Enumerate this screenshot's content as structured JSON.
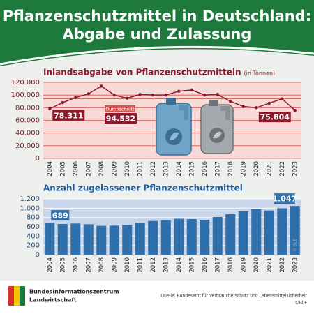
{
  "header": {
    "title_line1": "Pflanzenschutzmittel in Deutschland:",
    "title_line2": "Abgabe und Zulassung"
  },
  "chart_data": [
    {
      "type": "line",
      "title": "Inlandsabgabe von Pflanzenschutzmitteln",
      "unit": "(in Tonnen)",
      "categories": [
        "2004",
        "2005",
        "2006",
        "2007",
        "2008",
        "2009",
        "2010",
        "2011",
        "2012",
        "2013",
        "2014",
        "2015",
        "2016",
        "2017",
        "2018",
        "2019",
        "2020",
        "2021",
        "2022",
        "2023"
      ],
      "values": [
        78311,
        88000,
        96000,
        102000,
        114000,
        100000,
        95000,
        101000,
        100000,
        100000,
        106000,
        108000,
        100000,
        101000,
        90000,
        82000,
        80000,
        87000,
        94000,
        75804
      ],
      "value_labels": [
        "78.311",
        null,
        null,
        null,
        null,
        null,
        null,
        null,
        null,
        null,
        null,
        null,
        null,
        null,
        null,
        null,
        null,
        null,
        null,
        "75.804"
      ],
      "color": "#8b1a2e",
      "ylim": [
        0,
        120000
      ],
      "yticks": [
        0,
        {
          "value": 20000,
          "label": "20.000"
        },
        {
          "value": 40000,
          "label": "40.000"
        },
        {
          "value": 60000,
          "label": "60.000"
        },
        {
          "value": 80000,
          "label": "80.000"
        },
        {
          "value": 100000,
          "label": "100.000"
        },
        {
          "value": 120000,
          "label": "120.000"
        }
      ],
      "grid": true,
      "average": {
        "label": "Durchschnitt",
        "value": 94532,
        "value_label": "94.532"
      }
    },
    {
      "type": "bar",
      "title": "Anzahl zugelassener Pflanzenschutzmittel",
      "categories": [
        "2004",
        "2005",
        "2006",
        "2007",
        "2008",
        "2009",
        "2010",
        "2011",
        "2012",
        "2013",
        "2014",
        "2015",
        "2016",
        "2017",
        "2018",
        "2019",
        "2020",
        "2021",
        "2022",
        "2023"
      ],
      "values": [
        689,
        660,
        670,
        655,
        620,
        625,
        640,
        690,
        725,
        740,
        770,
        765,
        750,
        810,
        870,
        935,
        980,
        950,
        1000,
        1047
      ],
      "value_labels": [
        "689",
        null,
        null,
        null,
        null,
        null,
        null,
        null,
        null,
        null,
        null,
        null,
        null,
        null,
        null,
        null,
        null,
        null,
        null,
        "1.047"
      ],
      "color": "#2e6fac",
      "ylim": [
        0,
        1200
      ],
      "yticks": [
        0,
        200,
        400,
        600,
        800,
        {
          "value": 1000,
          "label": "1.000"
        },
        {
          "value": 1200,
          "label": "1.200"
        }
      ],
      "grid": true,
      "watermark": "© BLE"
    }
  ],
  "footer": {
    "org_line1": "Bundesinformationszentrum",
    "org_line2": "Landwirtschaft",
    "source": "Quelle: Bundesamt für Verbraucherschutz und Lebensmittelsicherheit",
    "copyright": "©BLE"
  }
}
